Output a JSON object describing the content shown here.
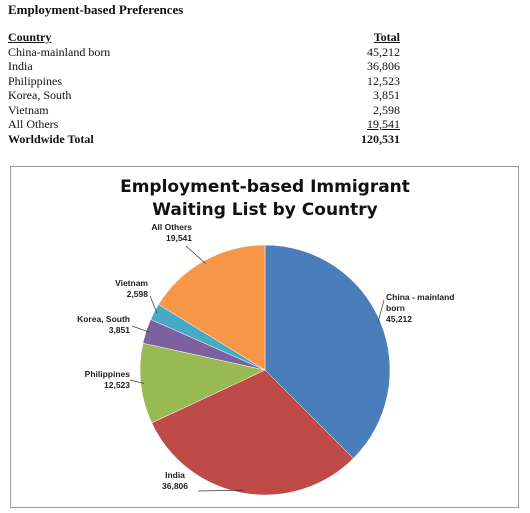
{
  "header": {
    "title": "Employment-based Preferences"
  },
  "table": {
    "columns": [
      "Country",
      "Total"
    ],
    "rows": [
      [
        "China-mainland born",
        "45,212"
      ],
      [
        "India",
        "36,806"
      ],
      [
        "Philippines",
        "12,523"
      ],
      [
        "Korea, South",
        "3,851"
      ],
      [
        "Vietnam",
        "2,598"
      ],
      [
        "All Others",
        "19,541"
      ]
    ],
    "footer": [
      "Worldwide Total",
      "120,531"
    ]
  },
  "chart_data": {
    "type": "pie",
    "title": "Employment-based Immigrant Waiting List by Country",
    "categories": [
      "China - mainland born",
      "India",
      "Philippines",
      "Korea, South",
      "Vietnam",
      "All Others"
    ],
    "values": [
      45212,
      36806,
      12523,
      3851,
      2598,
      19541
    ],
    "value_labels": [
      "45,212",
      "36,806",
      "12,523",
      "3,851",
      "2,598",
      "19,541"
    ],
    "colors": [
      "#4a7ebb",
      "#be4b48",
      "#98b954",
      "#7d60a0",
      "#46aac5",
      "#f79646"
    ]
  }
}
